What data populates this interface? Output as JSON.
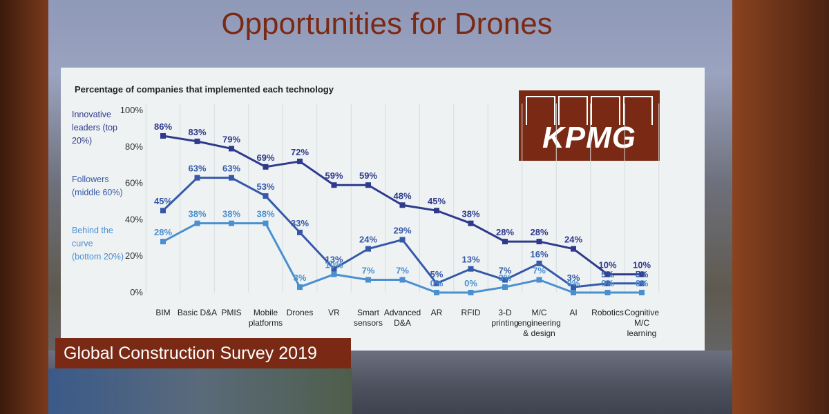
{
  "slide": {
    "title": "Opportunities for Drones",
    "banner": "Global Construction Survey 2019",
    "logo_text": "KPMG",
    "brand_color": "#7a2a14"
  },
  "chart_data": {
    "type": "line",
    "title": "Percentage of companies that implemented each technology",
    "categories": [
      "BIM",
      "Basic D&A",
      "PMIS",
      "Mobile platforms",
      "Drones",
      "VR",
      "Smart sensors",
      "Advanced D&A",
      "AR",
      "RFID",
      "3-D printing",
      "M/C engineering & design",
      "AI",
      "Robotics",
      "Cognitive M/C learning"
    ],
    "yticks": [
      "100%",
      "80%",
      "60%",
      "40%",
      "20%",
      "0%"
    ],
    "ylim": [
      0,
      100
    ],
    "series": [
      {
        "name": "Innovative leaders (top 20%)",
        "color": "#2f3a8c",
        "values": [
          86,
          83,
          79,
          69,
          72,
          59,
          59,
          48,
          45,
          38,
          28,
          28,
          24,
          10,
          10
        ]
      },
      {
        "name": "Followers (middle 60%)",
        "color": "#3558a8",
        "values": [
          45,
          63,
          63,
          53,
          33,
          13,
          24,
          29,
          5,
          13,
          7,
          16,
          3,
          5,
          5
        ]
      },
      {
        "name": "Behind the curve (bottom 20%)",
        "color": "#4a8fcf",
        "values": [
          28,
          38,
          38,
          38,
          3,
          10,
          7,
          7,
          0,
          0,
          3,
          7,
          0,
          0,
          0
        ]
      }
    ],
    "legend_placement": "left",
    "grid": "vertical"
  }
}
